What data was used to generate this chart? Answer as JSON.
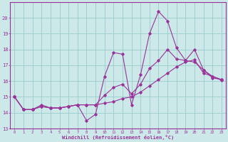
{
  "xlabel": "Windchill (Refroidissement éolien,°C)",
  "background_color": "#cce8e8",
  "grid_color": "#99cccc",
  "line_color": "#993399",
  "xlim_min": 0,
  "xlim_max": 23,
  "ylim_min": 13,
  "ylim_max": 21,
  "yticks": [
    13,
    14,
    15,
    16,
    17,
    18,
    19,
    20
  ],
  "xticks": [
    0,
    1,
    2,
    3,
    4,
    5,
    6,
    7,
    8,
    9,
    10,
    11,
    12,
    13,
    14,
    15,
    16,
    17,
    18,
    19,
    20,
    21,
    22,
    23
  ],
  "series": [
    {
      "x": [
        0,
        1,
        2,
        3,
        4,
        5,
        6,
        7,
        8,
        9,
        10,
        11,
        12,
        13,
        14,
        15,
        16,
        17,
        18,
        19,
        20,
        21,
        22,
        23
      ],
      "y": [
        15.0,
        14.2,
        14.2,
        14.5,
        14.3,
        14.3,
        14.4,
        14.5,
        13.5,
        13.9,
        16.3,
        17.8,
        17.7,
        14.5,
        16.4,
        19.0,
        20.4,
        19.8,
        18.1,
        17.3,
        18.0,
        16.7,
        16.2,
        16.1
      ]
    },
    {
      "x": [
        0,
        1,
        2,
        3,
        4,
        5,
        6,
        7,
        8,
        9,
        10,
        11,
        12,
        13,
        14,
        15,
        16,
        17,
        18,
        19,
        20,
        21,
        22,
        23
      ],
      "y": [
        15.0,
        14.2,
        14.2,
        14.4,
        14.3,
        14.3,
        14.4,
        14.5,
        14.5,
        14.5,
        14.6,
        14.7,
        14.9,
        15.0,
        15.3,
        15.7,
        16.1,
        16.5,
        16.9,
        17.2,
        17.35,
        16.5,
        16.3,
        16.05
      ]
    },
    {
      "x": [
        0,
        1,
        2,
        3,
        4,
        5,
        6,
        7,
        8,
        9,
        10,
        11,
        12,
        13,
        14,
        15,
        16,
        17,
        18,
        19,
        20,
        21,
        22,
        23
      ],
      "y": [
        15.0,
        14.2,
        14.2,
        14.4,
        14.3,
        14.3,
        14.4,
        14.5,
        14.5,
        14.5,
        15.1,
        15.6,
        15.8,
        15.2,
        15.8,
        16.8,
        17.3,
        18.0,
        17.4,
        17.3,
        17.2,
        16.7,
        16.3,
        16.1
      ]
    }
  ]
}
